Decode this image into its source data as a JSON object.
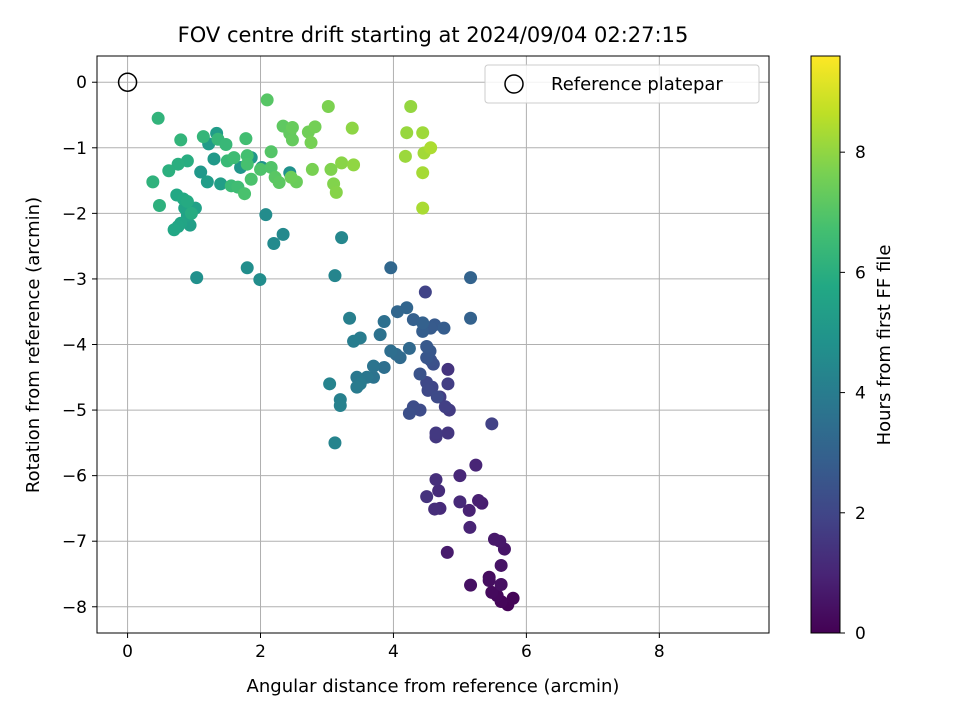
{
  "chart_data": {
    "type": "scatter",
    "title": "FOV centre drift starting at 2024/09/04 02:27:15",
    "xlabel": "Angular distance from reference (arcmin)",
    "ylabel": "Rotation from reference (arcmin)",
    "xlim": [
      -0.46,
      9.65
    ],
    "ylim": [
      -8.4,
      0.4
    ],
    "x_ticks": [
      0,
      2,
      4,
      6,
      8
    ],
    "y_ticks": [
      0,
      -1,
      -2,
      -3,
      -4,
      -5,
      -6,
      -7,
      -8
    ],
    "grid": true,
    "legend": {
      "placement": "top-right",
      "entries": [
        "Reference platepar"
      ]
    },
    "colorbar": {
      "label": "Hours from first FF file",
      "range": [
        0,
        9.6
      ],
      "ticks": [
        0,
        2,
        4,
        6,
        8
      ],
      "colormap": "viridis"
    },
    "reference_point": {
      "x": 0,
      "y": 0
    },
    "points": [
      [
        5.72,
        -7.97,
        0.05
      ],
      [
        5.8,
        -7.87,
        0.1
      ],
      [
        5.62,
        -7.92,
        0.15
      ],
      [
        5.56,
        -7.83,
        0.2
      ],
      [
        5.48,
        -7.78,
        0.25
      ],
      [
        5.44,
        -7.55,
        0.3
      ],
      [
        5.44,
        -7.6,
        0.35
      ],
      [
        5.62,
        -7.66,
        0.4
      ],
      [
        5.16,
        -7.67,
        0.45
      ],
      [
        5.62,
        -7.37,
        0.5
      ],
      [
        5.67,
        -7.12,
        0.55
      ],
      [
        5.6,
        -7.0,
        0.6
      ],
      [
        5.52,
        -6.97,
        0.65
      ],
      [
        4.81,
        -7.17,
        0.7
      ],
      [
        5.33,
        -6.42,
        0.8
      ],
      [
        5.28,
        -6.38,
        0.85
      ],
      [
        5.14,
        -6.53,
        0.9
      ],
      [
        5.15,
        -6.79,
        0.95
      ],
      [
        5.24,
        -5.84,
        1.0
      ],
      [
        5.0,
        -6.0,
        1.05
      ],
      [
        5.0,
        -6.4,
        1.1
      ],
      [
        4.7,
        -6.5,
        1.15
      ],
      [
        4.68,
        -6.23,
        1.2
      ],
      [
        4.62,
        -6.51,
        1.25
      ],
      [
        4.64,
        -6.06,
        1.3
      ],
      [
        4.5,
        -6.32,
        1.4
      ],
      [
        4.82,
        -4.38,
        1.45
      ],
      [
        4.82,
        -5.35,
        1.5
      ],
      [
        4.64,
        -5.41,
        1.55
      ],
      [
        4.64,
        -5.35,
        1.6
      ],
      [
        4.84,
        -5.0,
        1.65
      ],
      [
        4.7,
        -4.8,
        1.7
      ],
      [
        4.82,
        -4.6,
        1.75
      ],
      [
        4.78,
        -4.95,
        1.8
      ],
      [
        5.48,
        -5.21,
        1.85
      ],
      [
        4.48,
        -3.2,
        1.9
      ],
      [
        4.58,
        -4.65,
        2.0
      ],
      [
        4.5,
        -4.58,
        2.05
      ],
      [
        4.52,
        -4.7,
        2.1
      ],
      [
        4.66,
        -4.8,
        2.15
      ],
      [
        4.4,
        -5.0,
        2.2
      ],
      [
        4.3,
        -4.95,
        2.25
      ],
      [
        4.24,
        -5.05,
        2.3
      ],
      [
        4.6,
        -4.3,
        2.35
      ],
      [
        4.56,
        -4.24,
        2.4
      ],
      [
        4.4,
        -4.45,
        2.45
      ],
      [
        4.5,
        -4.2,
        2.55
      ],
      [
        4.55,
        -4.1,
        2.6
      ],
      [
        4.5,
        -4.03,
        2.65
      ],
      [
        4.62,
        -3.7,
        2.7
      ],
      [
        4.56,
        -3.75,
        2.75
      ],
      [
        4.76,
        -3.75,
        2.8
      ],
      [
        4.44,
        -3.8,
        2.85
      ],
      [
        4.3,
        -3.62,
        2.9
      ],
      [
        4.44,
        -3.67,
        2.95
      ],
      [
        5.16,
        -3.6,
        3.0
      ],
      [
        5.16,
        -2.98,
        3.05
      ],
      [
        4.2,
        -3.44,
        3.1
      ],
      [
        4.06,
        -3.5,
        3.15
      ],
      [
        3.96,
        -2.83,
        3.2
      ],
      [
        4.24,
        -4.06,
        3.25
      ],
      [
        4.1,
        -4.2,
        3.3
      ],
      [
        4.04,
        -4.15,
        3.35
      ],
      [
        3.96,
        -4.1,
        3.45
      ],
      [
        3.86,
        -4.35,
        3.5
      ],
      [
        3.86,
        -3.65,
        3.55
      ],
      [
        3.8,
        -3.85,
        3.6
      ],
      [
        3.7,
        -4.5,
        3.65
      ],
      [
        3.7,
        -4.33,
        3.7
      ],
      [
        3.6,
        -4.5,
        3.75
      ],
      [
        3.5,
        -4.55,
        3.8
      ],
      [
        3.45,
        -4.5,
        3.85
      ],
      [
        3.5,
        -4.6,
        3.9
      ],
      [
        3.45,
        -4.65,
        3.95
      ],
      [
        3.5,
        -3.9,
        4.0
      ],
      [
        3.4,
        -3.95,
        4.05
      ],
      [
        3.34,
        -3.6,
        4.1
      ],
      [
        3.2,
        -4.84,
        4.15
      ],
      [
        3.2,
        -4.93,
        4.2
      ],
      [
        3.04,
        -4.6,
        4.25
      ],
      [
        3.12,
        -5.5,
        4.3
      ],
      [
        3.12,
        -2.95,
        4.35
      ],
      [
        3.22,
        -2.37,
        4.4
      ],
      [
        2.34,
        -2.32,
        4.5
      ],
      [
        2.2,
        -2.46,
        4.55
      ],
      [
        2.08,
        -2.02,
        4.6
      ],
      [
        1.99,
        -3.01,
        4.65
      ],
      [
        1.8,
        -2.83,
        4.7
      ],
      [
        1.04,
        -2.98,
        4.75
      ],
      [
        2.44,
        -1.38,
        4.8
      ],
      [
        2.02,
        -1.3,
        4.9
      ],
      [
        1.7,
        -1.3,
        5.0
      ],
      [
        1.86,
        -1.15,
        5.05
      ],
      [
        1.1,
        -1.37,
        5.1
      ],
      [
        1.3,
        -1.17,
        5.15
      ],
      [
        1.22,
        -0.94,
        5.2
      ],
      [
        1.34,
        -0.78,
        5.25
      ],
      [
        1.2,
        -1.52,
        5.3
      ],
      [
        1.4,
        -1.55,
        5.35
      ],
      [
        0.94,
        -2.18,
        5.4
      ],
      [
        1.02,
        -1.92,
        5.45
      ],
      [
        0.9,
        -2.03,
        5.5
      ],
      [
        0.86,
        -1.92,
        5.55
      ],
      [
        0.8,
        -2.15,
        5.6
      ],
      [
        0.76,
        -2.2,
        5.65
      ],
      [
        0.7,
        -2.25,
        5.7
      ],
      [
        0.74,
        -1.72,
        5.75
      ],
      [
        0.84,
        -1.78,
        5.8
      ],
      [
        0.9,
        -1.82,
        5.85
      ],
      [
        0.96,
        -2.0,
        5.9
      ],
      [
        0.9,
        -1.2,
        5.95
      ],
      [
        0.76,
        -1.25,
        6.0
      ],
      [
        0.62,
        -1.35,
        6.05
      ],
      [
        0.48,
        -1.88,
        6.1
      ],
      [
        0.38,
        -1.52,
        6.15
      ],
      [
        0.46,
        -0.55,
        6.2
      ],
      [
        0.8,
        -0.88,
        6.25
      ],
      [
        1.14,
        -0.83,
        6.3
      ],
      [
        1.36,
        -0.87,
        6.35
      ],
      [
        1.48,
        -0.95,
        6.4
      ],
      [
        1.5,
        -1.2,
        6.45
      ],
      [
        1.56,
        -1.58,
        6.5
      ],
      [
        1.6,
        -1.15,
        6.55
      ],
      [
        1.66,
        -1.6,
        6.6
      ],
      [
        1.78,
        -0.86,
        6.65
      ],
      [
        1.8,
        -1.12,
        6.7
      ],
      [
        1.8,
        -1.25,
        6.75
      ],
      [
        1.76,
        -1.7,
        6.8
      ],
      [
        1.86,
        -1.48,
        6.85
      ],
      [
        2.0,
        -1.33,
        6.9
      ],
      [
        2.16,
        -1.3,
        6.95
      ],
      [
        2.16,
        -1.06,
        7.0
      ],
      [
        2.1,
        -0.27,
        7.05
      ],
      [
        2.22,
        -1.45,
        7.1
      ],
      [
        2.28,
        -1.53,
        7.15
      ],
      [
        2.34,
        -0.67,
        7.2
      ],
      [
        2.44,
        -0.78,
        7.25
      ],
      [
        2.48,
        -0.88,
        7.3
      ],
      [
        2.48,
        -0.69,
        7.35
      ],
      [
        2.54,
        -1.52,
        7.4
      ],
      [
        2.46,
        -1.45,
        7.45
      ],
      [
        2.72,
        -0.76,
        7.5
      ],
      [
        2.82,
        -0.68,
        7.55
      ],
      [
        2.76,
        -0.92,
        7.6
      ],
      [
        2.78,
        -1.33,
        7.65
      ],
      [
        3.02,
        -0.37,
        7.7
      ],
      [
        3.06,
        -1.33,
        7.75
      ],
      [
        3.1,
        -1.55,
        7.8
      ],
      [
        3.14,
        -1.68,
        7.85
      ],
      [
        3.22,
        -1.23,
        7.9
      ],
      [
        3.38,
        -0.7,
        7.95
      ],
      [
        3.4,
        -1.26,
        8.0
      ],
      [
        4.26,
        -0.37,
        8.05
      ],
      [
        4.2,
        -0.77,
        8.1
      ],
      [
        4.18,
        -1.13,
        8.15
      ],
      [
        4.44,
        -0.77,
        8.2
      ],
      [
        4.46,
        -1.08,
        8.25
      ],
      [
        4.44,
        -1.38,
        8.3
      ],
      [
        4.44,
        -1.92,
        8.35
      ],
      [
        4.56,
        -1.0,
        8.4
      ]
    ]
  }
}
